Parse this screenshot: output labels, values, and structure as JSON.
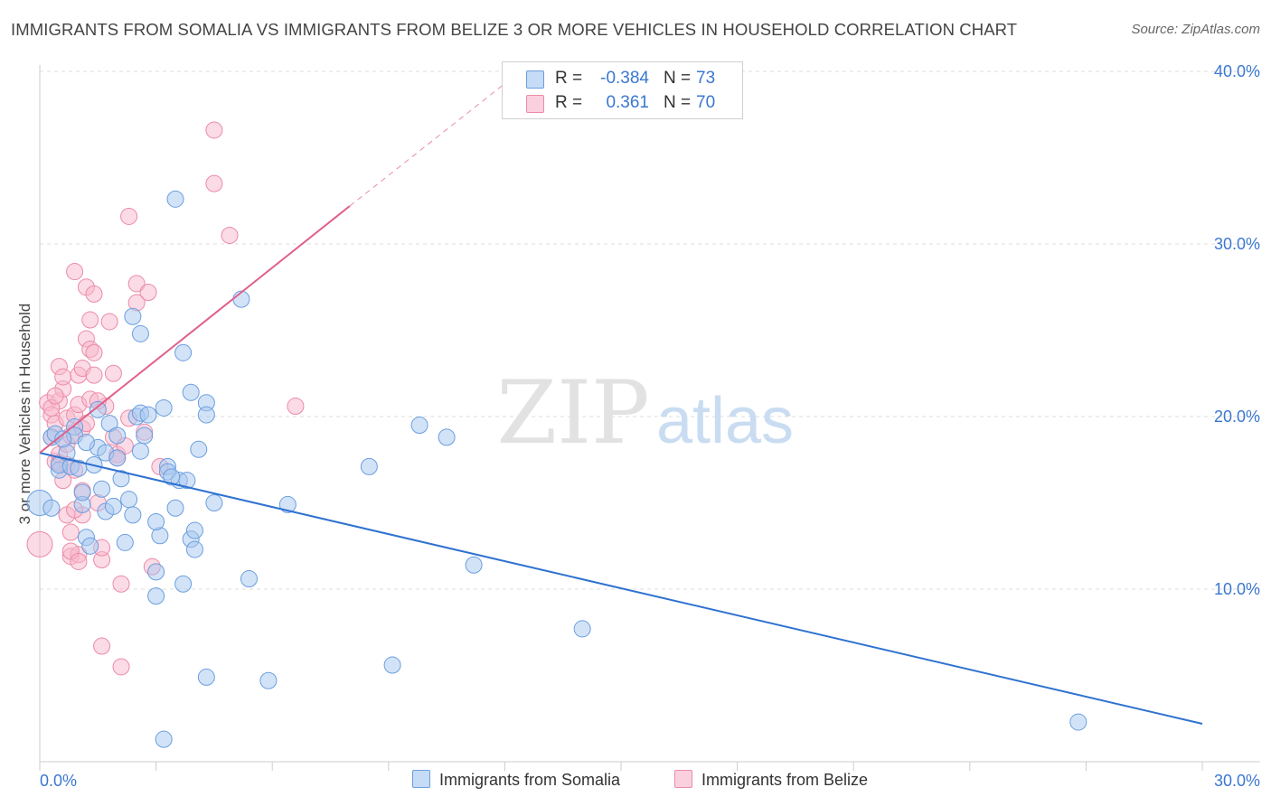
{
  "title": "IMMIGRANTS FROM SOMALIA VS IMMIGRANTS FROM BELIZE 3 OR MORE VEHICLES IN HOUSEHOLD CORRELATION CHART",
  "source": "Source: ZipAtlas.com",
  "watermark": {
    "zip": "ZIP",
    "atlas": "atlas"
  },
  "legend": {
    "somalia": {
      "r_label": "R =",
      "r_value": "-0.384",
      "n_label": "N =",
      "n_value": "73"
    },
    "belize": {
      "r_label": "R =",
      "r_value": "0.361",
      "n_label": "N =",
      "n_value": "70"
    }
  },
  "colors": {
    "somalia_fill": "#a8c8f0",
    "somalia_stroke": "#6a9ee0",
    "somalia_line": "#2f72d0",
    "belize_fill": "#f8b8cc",
    "belize_stroke": "#ec8aa8",
    "belize_line": "#e0608a",
    "value_text": "#3a78d0",
    "grid": "#dddddd"
  },
  "chart_data": {
    "type": "scatter",
    "title": "IMMIGRANTS FROM SOMALIA VS IMMIGRANTS FROM BELIZE 3 OR MORE VEHICLES IN HOUSEHOLD CORRELATION CHART",
    "xlabel": "",
    "ylabel": "3 or more Vehicles in Household",
    "xlim": [
      0,
      30
    ],
    "ylim": [
      0,
      40
    ],
    "x_tick_labels": [
      "0.0%",
      "30.0%"
    ],
    "y_ticks": [
      10,
      20,
      30,
      40
    ],
    "y_tick_labels": [
      "10.0%",
      "20.0%",
      "30.0%",
      "40.0%"
    ],
    "series": [
      {
        "name": "Immigrants from Somalia",
        "r": -0.384,
        "n": 73,
        "trend": {
          "x": [
            0.0,
            30.0
          ],
          "y": [
            17.9,
            2.2
          ],
          "style": "solid"
        },
        "points": [
          [
            0.0,
            15.0
          ],
          [
            0.3,
            14.7
          ],
          [
            0.5,
            16.9
          ],
          [
            0.5,
            17.2
          ],
          [
            0.7,
            17.9
          ],
          [
            0.9,
            19.4
          ],
          [
            0.9,
            18.9
          ],
          [
            1.1,
            14.9
          ],
          [
            1.1,
            15.6
          ],
          [
            1.2,
            13.0
          ],
          [
            1.3,
            12.5
          ],
          [
            1.4,
            17.2
          ],
          [
            1.5,
            18.2
          ],
          [
            1.5,
            20.4
          ],
          [
            1.6,
            15.8
          ],
          [
            1.7,
            14.5
          ],
          [
            1.7,
            17.9
          ],
          [
            1.8,
            19.6
          ],
          [
            1.9,
            14.8
          ],
          [
            2.0,
            18.9
          ],
          [
            2.0,
            17.6
          ],
          [
            2.1,
            16.4
          ],
          [
            2.2,
            12.7
          ],
          [
            2.3,
            15.2
          ],
          [
            2.4,
            14.3
          ],
          [
            2.4,
            25.8
          ],
          [
            2.5,
            20.0
          ],
          [
            2.6,
            24.8
          ],
          [
            2.6,
            20.2
          ],
          [
            2.6,
            18.0
          ],
          [
            2.8,
            20.1
          ],
          [
            3.0,
            11.0
          ],
          [
            3.0,
            9.6
          ],
          [
            3.1,
            13.1
          ],
          [
            3.2,
            20.5
          ],
          [
            3.3,
            17.1
          ],
          [
            3.3,
            16.8
          ],
          [
            3.5,
            32.6
          ],
          [
            3.5,
            14.7
          ],
          [
            3.6,
            16.3
          ],
          [
            3.7,
            10.3
          ],
          [
            3.7,
            23.7
          ],
          [
            3.8,
            16.3
          ],
          [
            3.9,
            21.4
          ],
          [
            3.9,
            12.9
          ],
          [
            4.0,
            13.4
          ],
          [
            4.0,
            12.3
          ],
          [
            4.1,
            18.1
          ],
          [
            4.3,
            20.8
          ],
          [
            4.3,
            20.1
          ],
          [
            4.5,
            15.0
          ],
          [
            5.2,
            26.8
          ],
          [
            5.4,
            10.6
          ],
          [
            6.4,
            14.9
          ],
          [
            8.5,
            17.1
          ],
          [
            9.8,
            19.5
          ],
          [
            10.5,
            18.8
          ],
          [
            11.2,
            11.4
          ],
          [
            14.0,
            7.7
          ],
          [
            26.8,
            2.3
          ],
          [
            3.2,
            1.3
          ],
          [
            4.3,
            4.9
          ],
          [
            5.9,
            4.7
          ],
          [
            9.1,
            5.6
          ],
          [
            0.3,
            18.8
          ],
          [
            0.4,
            19.0
          ],
          [
            0.6,
            18.7
          ],
          [
            0.8,
            17.1
          ],
          [
            1.0,
            17.0
          ],
          [
            1.2,
            18.5
          ],
          [
            2.7,
            18.9
          ],
          [
            3.0,
            13.9
          ],
          [
            3.4,
            16.5
          ]
        ]
      },
      {
        "name": "Immigrants from Belize",
        "r": 0.361,
        "n": 70,
        "trend": {
          "x": [
            0.0,
            8.0
          ],
          "y": [
            17.9,
            32.2
          ],
          "style": "solid",
          "extension": {
            "x": [
              8.0,
              12.4
            ],
            "y": [
              32.2,
              40.0
            ],
            "style": "dashed"
          }
        },
        "points": [
          [
            0.0,
            12.6
          ],
          [
            0.2,
            20.8
          ],
          [
            0.3,
            20.1
          ],
          [
            0.3,
            18.8
          ],
          [
            0.4,
            17.4
          ],
          [
            0.4,
            19.6
          ],
          [
            0.5,
            17.8
          ],
          [
            0.5,
            20.9
          ],
          [
            0.5,
            22.9
          ],
          [
            0.6,
            21.6
          ],
          [
            0.6,
            22.3
          ],
          [
            0.7,
            17.2
          ],
          [
            0.7,
            19.9
          ],
          [
            0.7,
            18.4
          ],
          [
            0.8,
            11.9
          ],
          [
            0.8,
            13.3
          ],
          [
            0.8,
            18.9
          ],
          [
            0.9,
            28.4
          ],
          [
            0.9,
            20.1
          ],
          [
            0.9,
            16.9
          ],
          [
            1.0,
            12.0
          ],
          [
            1.0,
            20.7
          ],
          [
            1.0,
            22.4
          ],
          [
            1.1,
            15.7
          ],
          [
            1.1,
            19.3
          ],
          [
            1.1,
            14.3
          ],
          [
            1.1,
            22.8
          ],
          [
            1.2,
            27.5
          ],
          [
            1.2,
            24.5
          ],
          [
            1.2,
            19.6
          ],
          [
            1.3,
            23.9
          ],
          [
            1.3,
            21.0
          ],
          [
            1.3,
            25.6
          ],
          [
            1.4,
            27.1
          ],
          [
            1.4,
            22.4
          ],
          [
            1.4,
            23.7
          ],
          [
            1.5,
            15.0
          ],
          [
            1.6,
            6.7
          ],
          [
            1.6,
            11.7
          ],
          [
            1.7,
            20.6
          ],
          [
            1.8,
            25.5
          ],
          [
            1.9,
            22.5
          ],
          [
            1.9,
            18.8
          ],
          [
            2.0,
            17.8
          ],
          [
            2.0,
            17.6
          ],
          [
            2.1,
            5.5
          ],
          [
            2.2,
            18.3
          ],
          [
            2.3,
            31.6
          ],
          [
            2.3,
            19.9
          ],
          [
            2.5,
            26.6
          ],
          [
            2.5,
            27.7
          ],
          [
            2.7,
            19.1
          ],
          [
            2.8,
            27.2
          ],
          [
            2.9,
            11.3
          ],
          [
            3.1,
            17.1
          ],
          [
            4.5,
            36.6
          ],
          [
            4.5,
            33.5
          ],
          [
            4.9,
            30.5
          ],
          [
            6.6,
            20.6
          ],
          [
            0.5,
            17.3
          ],
          [
            0.6,
            16.3
          ],
          [
            0.7,
            14.3
          ],
          [
            0.9,
            14.6
          ],
          [
            0.8,
            12.2
          ],
          [
            1.0,
            11.6
          ],
          [
            1.6,
            12.4
          ],
          [
            2.1,
            10.3
          ],
          [
            0.3,
            20.5
          ],
          [
            0.4,
            21.2
          ],
          [
            1.5,
            20.9
          ]
        ]
      }
    ],
    "legend_position": "top-center"
  }
}
